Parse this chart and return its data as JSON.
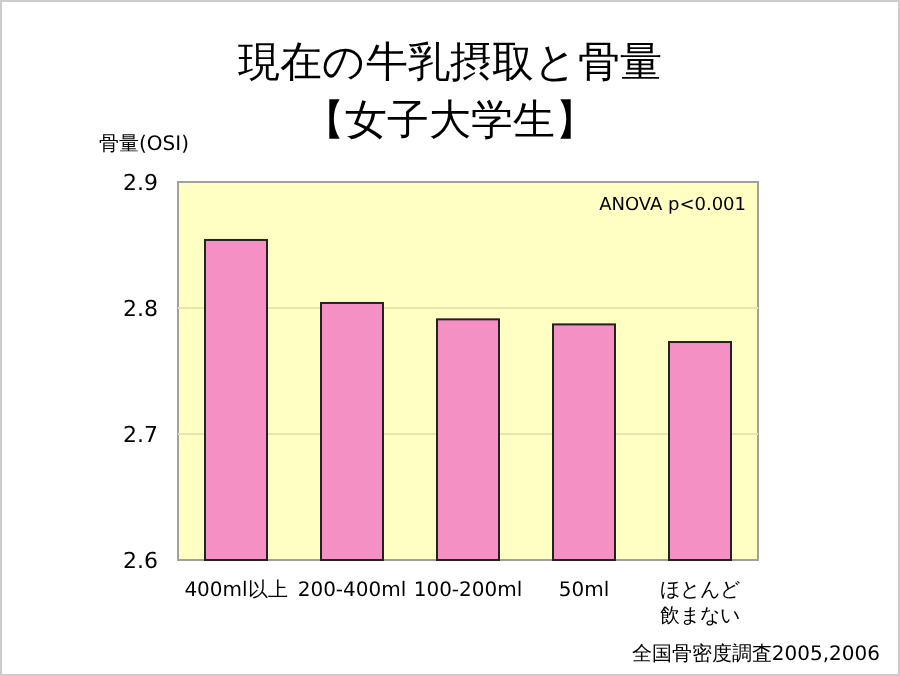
{
  "chart_data": {
    "type": "bar",
    "title": "現在の牛乳摂取と骨量",
    "subtitle": "【女子大学生】",
    "ylabel": "骨量(OSI)",
    "categories": [
      "400ml以上",
      "200-400ml",
      "100-200ml",
      "50ml",
      "ほとんど飲まない"
    ],
    "values": [
      2.854,
      2.804,
      2.791,
      2.787,
      2.773
    ],
    "color": "#f590c4",
    "ylim": [
      2.6,
      2.9
    ],
    "yticks": [
      2.6,
      2.7,
      2.8,
      2.9
    ],
    "grid": "y",
    "annotations": [
      "ANOVA p<0.001",
      "全国骨密度調査2005,2006"
    ]
  }
}
